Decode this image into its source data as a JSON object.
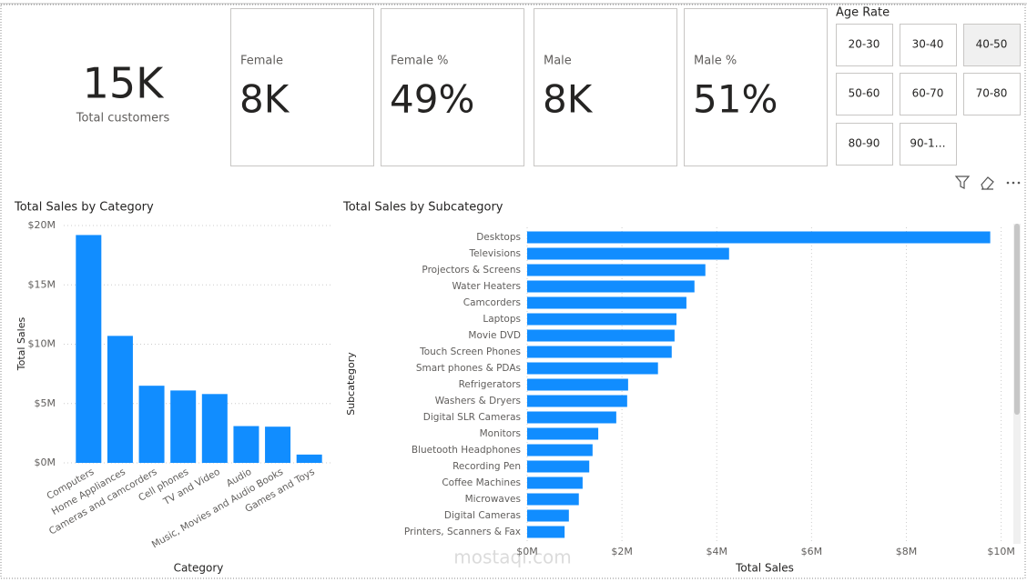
{
  "cards": [
    {
      "label": "Total customers",
      "value": "15K"
    },
    {
      "label": "Female",
      "value": "8K"
    },
    {
      "label": "Female %",
      "value": "49%"
    },
    {
      "label": "Male",
      "value": "8K"
    },
    {
      "label": "Male %",
      "value": "51%"
    }
  ],
  "slicer": {
    "title": "Age Rate",
    "options": [
      "20-30",
      "30-40",
      "40-50",
      "50-60",
      "60-70",
      "70-80",
      "80-90",
      "90-1…"
    ],
    "selected": "40-50"
  },
  "chart_data": [
    {
      "type": "bar",
      "title": "Total Sales by Category",
      "x_label": "Category",
      "y_label": "Total Sales",
      "categories": [
        "Computers",
        "Home Appliances",
        "Cameras and camcorders",
        "Cell phones",
        "TV and Video",
        "Audio",
        "Music, Movies and Audio Books",
        "Games and Toys"
      ],
      "values": [
        19200000,
        10700000,
        6500000,
        6100000,
        5800000,
        3100000,
        3050000,
        700000
      ],
      "color": "#118dff",
      "grid": true,
      "ylim": [
        0,
        20000000
      ],
      "yticks": [
        {
          "value": 0,
          "label": "$0M"
        },
        {
          "value": 5000000,
          "label": "$5M"
        },
        {
          "value": 10000000,
          "label": "$10M"
        },
        {
          "value": 15000000,
          "label": "$15M"
        },
        {
          "value": 20000000,
          "label": "$20M"
        }
      ]
    },
    {
      "type": "bar",
      "horizontal": true,
      "title": "Total Sales by Subcategory",
      "x_label": "Total Sales",
      "y_label": "Subcategory",
      "categories": [
        "Desktops",
        "Televisions",
        "Projectors & Screens",
        "Water Heaters",
        "Camcorders",
        "Laptops",
        "Movie DVD",
        "Touch Screen Phones",
        "Smart phones & PDAs",
        "Refrigerators",
        "Washers & Dryers",
        "Digital SLR Cameras",
        "Monitors",
        "Bluetooth Headphones",
        "Recording Pen",
        "Coffee Machines",
        "Microwaves",
        "Digital Cameras",
        "Printers, Scanners & Fax"
      ],
      "values": [
        9770000,
        4260000,
        3760000,
        3530000,
        3360000,
        3150000,
        3110000,
        3050000,
        2760000,
        2130000,
        2110000,
        1880000,
        1500000,
        1380000,
        1310000,
        1170000,
        1090000,
        880000,
        790000
      ],
      "color": "#118dff",
      "grid": true,
      "xlim": [
        0,
        10200000
      ],
      "xticks": [
        {
          "value": 0,
          "label": "$0M"
        },
        {
          "value": 2000000,
          "label": "$2M"
        },
        {
          "value": 4000000,
          "label": "$4M"
        },
        {
          "value": 6000000,
          "label": "$6M"
        },
        {
          "value": 8000000,
          "label": "$8M"
        },
        {
          "value": 10000000,
          "label": "$10M"
        }
      ]
    }
  ],
  "watermark": "mostaql.com"
}
